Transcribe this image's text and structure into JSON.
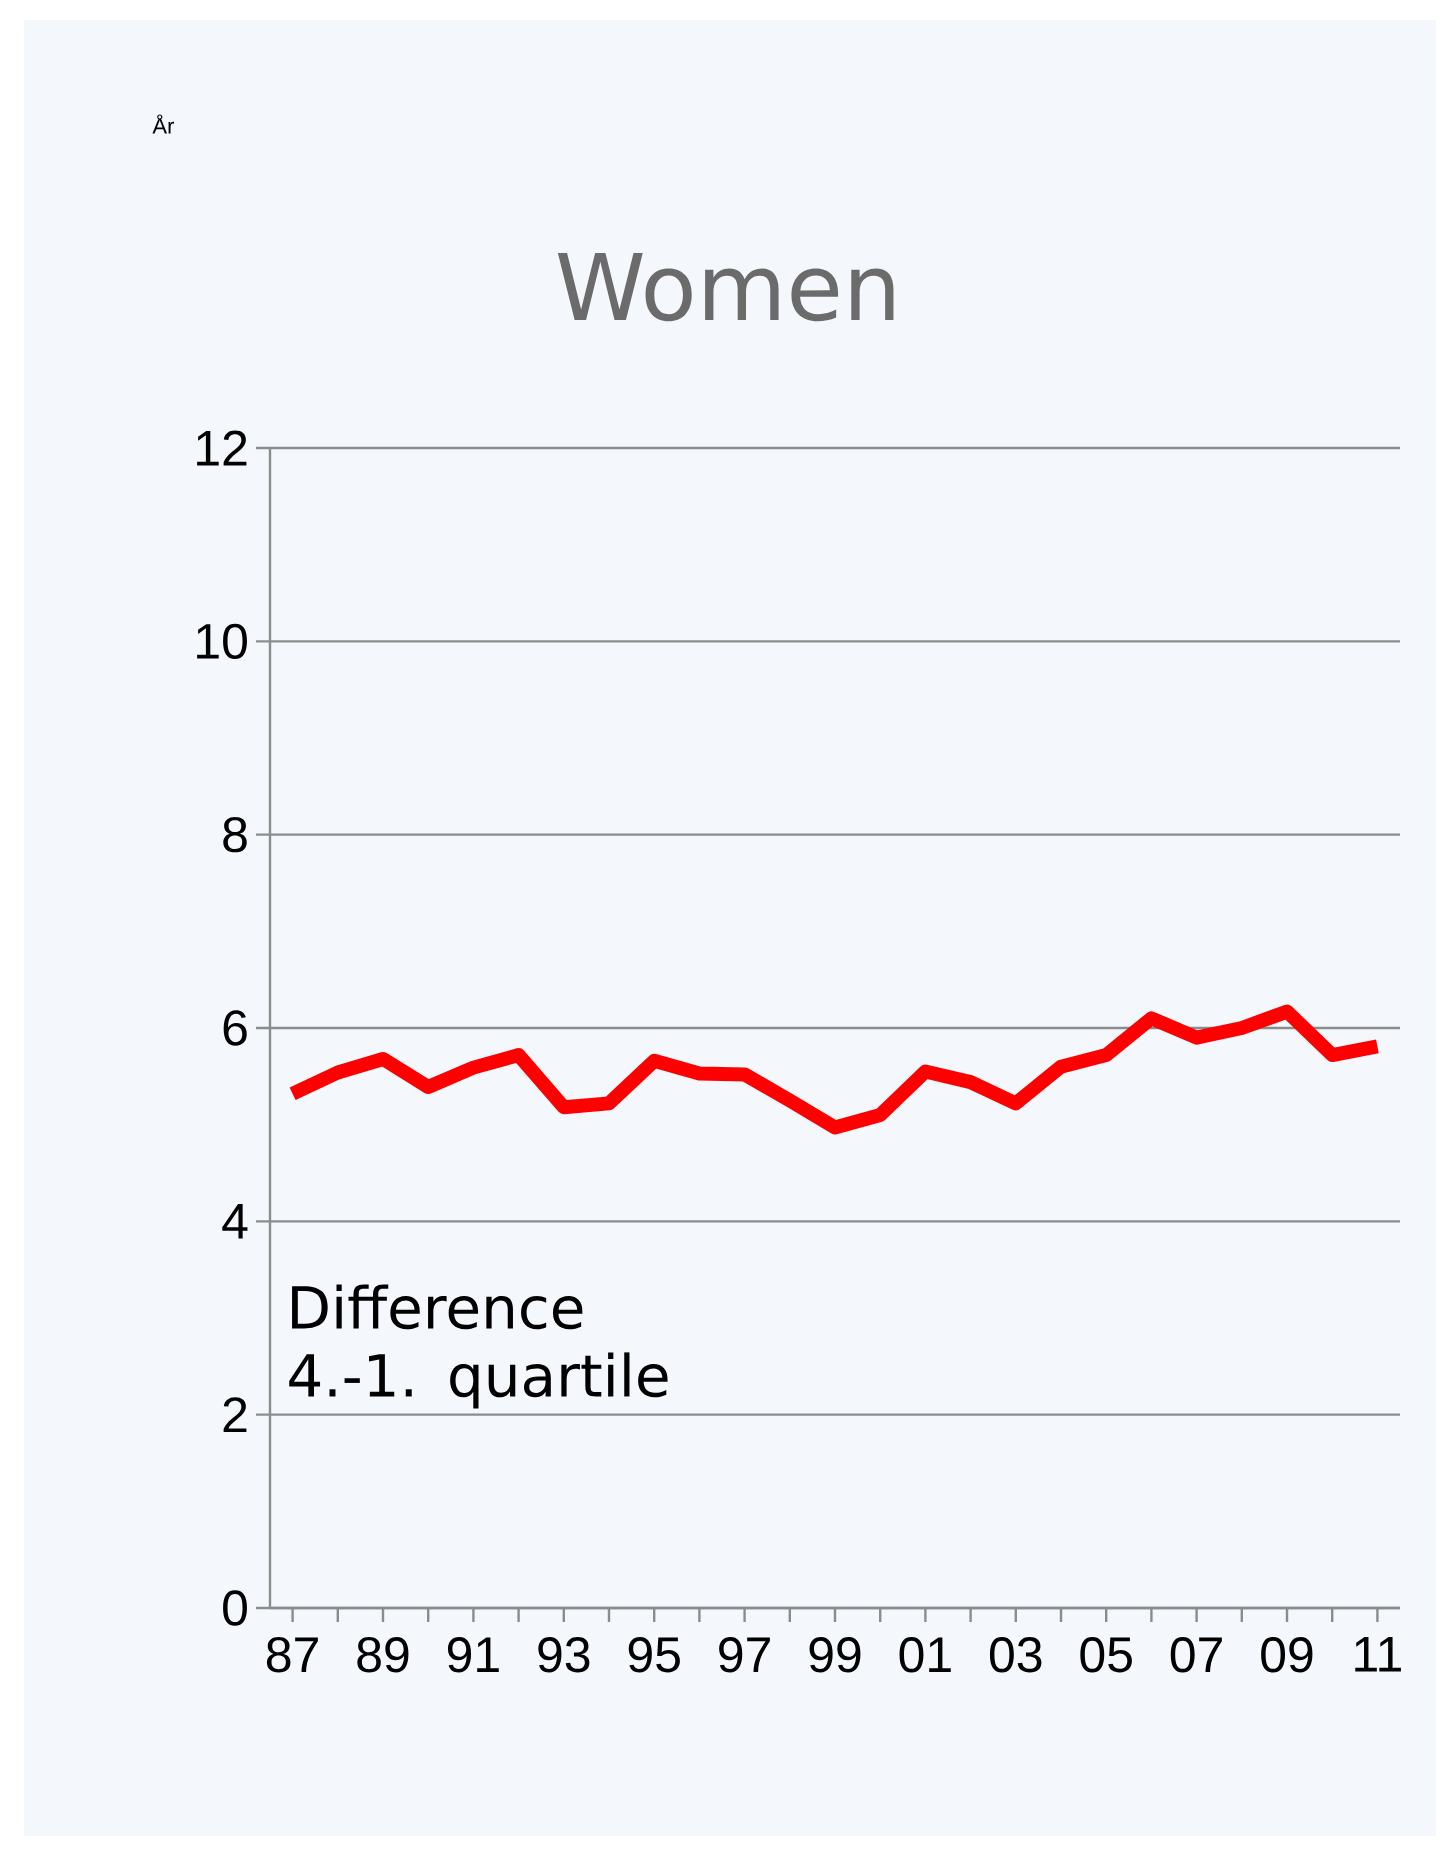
{
  "chart_data": {
    "type": "line",
    "title": "Women",
    "annotations": [
      "Difference\n4.-1. quartile",
      "År"
    ],
    "categories": [
      "87",
      null,
      "89",
      null,
      "91",
      null,
      "93",
      null,
      "95",
      null,
      "97",
      null,
      "99",
      null,
      "01",
      null,
      "03",
      null,
      "05",
      null,
      "07",
      null,
      "09",
      null,
      "11"
    ],
    "series": [
      {
        "color": "#ff0000",
        "values": [
          5.32,
          5.54,
          5.68,
          5.39,
          5.59,
          5.72,
          5.18,
          5.22,
          5.66,
          5.53,
          5.52,
          5.25,
          4.97,
          5.1,
          5.55,
          5.44,
          5.22,
          5.6,
          5.72,
          6.1,
          5.9,
          6.0,
          6.17,
          5.72,
          5.81
        ]
      }
    ],
    "ylim": [
      0,
      12
    ],
    "yticks": [
      0,
      2,
      4,
      6,
      8,
      10,
      12
    ],
    "grid": "y"
  }
}
